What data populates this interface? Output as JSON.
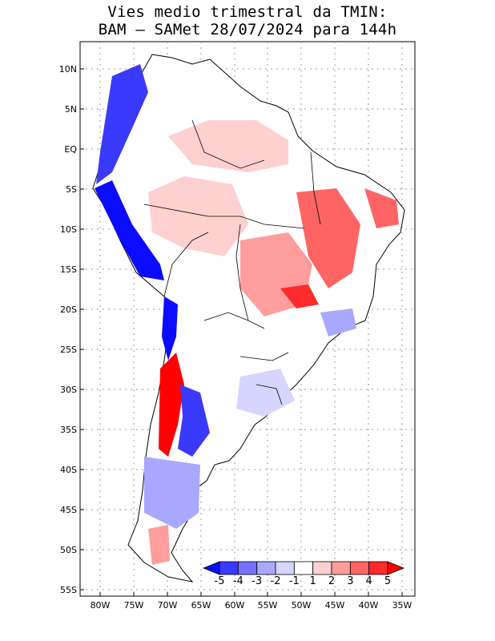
{
  "title_line1": "Vies medio trimestral da TMIN:",
  "title_line2": "BAM — SAMet 28/07/2024  para 144h",
  "y_ticks": [
    "10N",
    "5N",
    "EQ",
    "5S",
    "10S",
    "15S",
    "20S",
    "25S",
    "30S",
    "35S",
    "40S",
    "45S",
    "50S",
    "55S"
  ],
  "x_ticks": [
    "80W",
    "75W",
    "70W",
    "65W",
    "60W",
    "55W",
    "50W",
    "45W",
    "40W",
    "35W"
  ],
  "colorbar": {
    "labels": [
      "-5",
      "-4",
      "-3",
      "-2",
      "-1",
      "1",
      "2",
      "3",
      "4",
      "5"
    ],
    "colors": [
      "#0b0bff",
      "#3a3aff",
      "#7373ff",
      "#a8a8ff",
      "#d5d5ff",
      "#ffffff",
      "#ffd0d0",
      "#ff9c9c",
      "#ff6464",
      "#ff2a2a",
      "#ff0000"
    ]
  },
  "colors": {
    "frame": "#000000",
    "grid": "#9a9a9a",
    "land": "#ffffff"
  }
}
